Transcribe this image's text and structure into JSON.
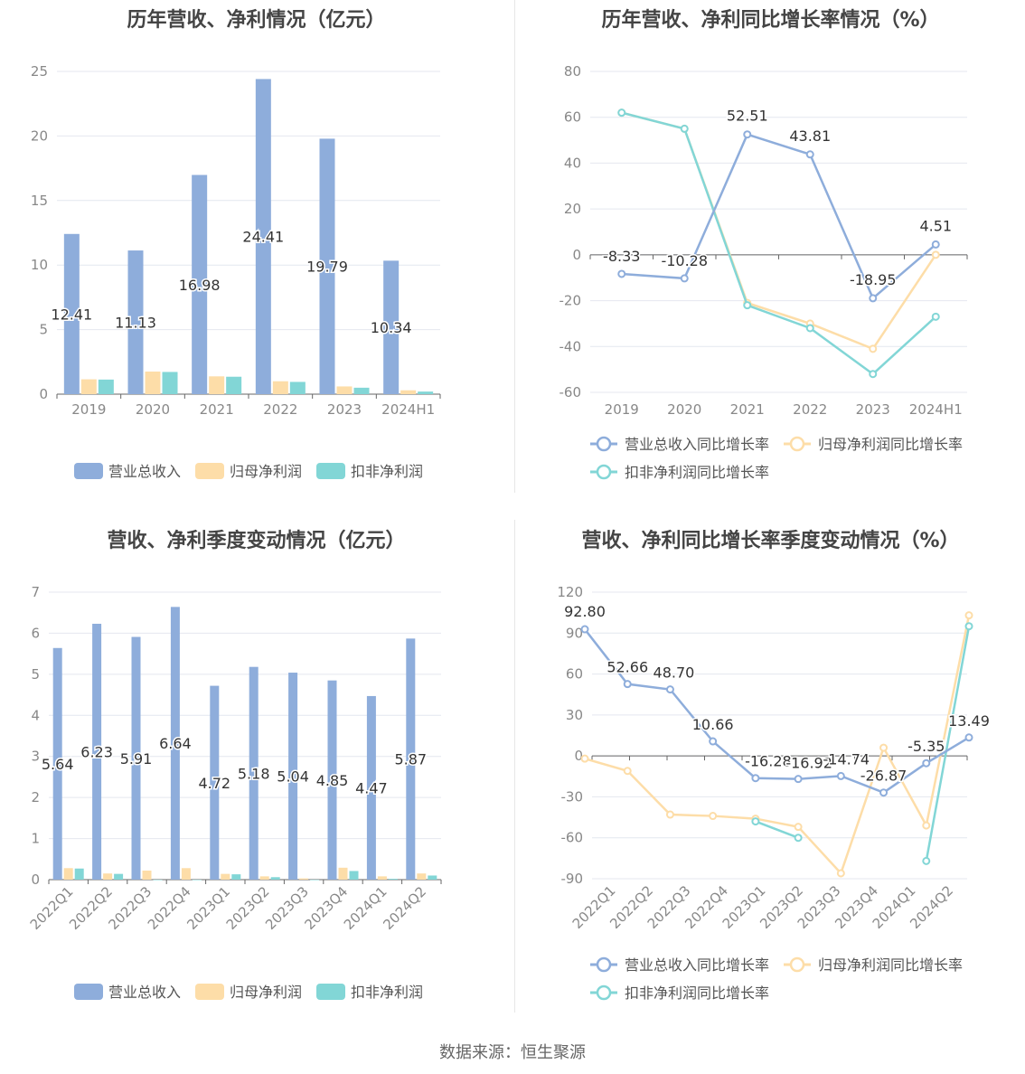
{
  "source": "数据来源：恒生聚源",
  "chart_data": [
    {
      "type": "bar",
      "title": "历年营收、净利情况（亿元）",
      "categories": [
        "2019",
        "2020",
        "2021",
        "2022",
        "2023",
        "2024H1"
      ],
      "ylim": [
        0,
        25
      ],
      "yticks": [
        0,
        5,
        10,
        15,
        20,
        25
      ],
      "series": [
        {
          "name": "营业总收入",
          "color": "#8EADDB",
          "values": [
            12.41,
            11.13,
            16.98,
            24.41,
            19.79,
            10.34
          ],
          "labels": [
            "12.41",
            "11.13",
            "16.98",
            "24.41",
            "19.79",
            "10.34"
          ]
        },
        {
          "name": "归母净利润",
          "color": "#FDDDA8",
          "values": [
            1.15,
            1.75,
            1.38,
            1.0,
            0.6,
            0.3
          ]
        },
        {
          "name": "扣非净利润",
          "color": "#82D6D6",
          "values": [
            1.13,
            1.72,
            1.35,
            0.95,
            0.5,
            0.2
          ]
        }
      ]
    },
    {
      "type": "line",
      "title": "历年营收、净利同比增长率情况（%）",
      "categories": [
        "2019",
        "2020",
        "2021",
        "2022",
        "2023",
        "2024H1"
      ],
      "ylim": [
        -60,
        80
      ],
      "yticks": [
        -60,
        -40,
        -20,
        0,
        20,
        40,
        60,
        80
      ],
      "series": [
        {
          "name": "营业总收入同比增长率",
          "color": "#8EADDB",
          "values": [
            -8.33,
            -10.28,
            52.51,
            43.81,
            -18.95,
            4.51
          ],
          "labels": [
            "-8.33",
            "-10.28",
            "52.51",
            "43.81",
            "-18.95",
            "4.51"
          ]
        },
        {
          "name": "归母净利润同比增长率",
          "color": "#FDDDA8",
          "values": [
            62,
            55,
            -21,
            -30,
            -41,
            0
          ]
        },
        {
          "name": "扣非净利润同比增长率",
          "color": "#82D6D6",
          "values": [
            62,
            55,
            -22,
            -32,
            -52,
            -27
          ]
        }
      ]
    },
    {
      "type": "bar",
      "title": "营收、净利季度变动情况（亿元）",
      "categories": [
        "2022Q1",
        "2022Q2",
        "2022Q3",
        "2022Q4",
        "2023Q1",
        "2023Q2",
        "2023Q3",
        "2023Q4",
        "2024Q1",
        "2024Q2"
      ],
      "ylim": [
        0,
        7
      ],
      "yticks": [
        0,
        1,
        2,
        3,
        4,
        5,
        6,
        7
      ],
      "series": [
        {
          "name": "营业总收入",
          "color": "#8EADDB",
          "values": [
            5.64,
            6.23,
            5.91,
            6.64,
            4.72,
            5.18,
            5.04,
            4.85,
            4.47,
            5.87
          ],
          "labels": [
            "5.64",
            "6.23",
            "5.91",
            "6.64",
            "4.72",
            "5.18",
            "5.04",
            "4.85",
            "4.47",
            "5.87"
          ]
        },
        {
          "name": "归母净利润",
          "color": "#FDDDA8",
          "values": [
            0.28,
            0.15,
            0.22,
            0.28,
            0.14,
            0.08,
            0.03,
            0.29,
            0.08,
            0.15
          ]
        },
        {
          "name": "扣非净利润",
          "color": "#82D6D6",
          "values": [
            0.27,
            0.14,
            0.0,
            0.0,
            0.13,
            0.06,
            0.0,
            0.21,
            0.02,
            0.1
          ]
        }
      ]
    },
    {
      "type": "line",
      "title": "营收、净利同比增长率季度变动情况（%）",
      "categories": [
        "2022Q1",
        "2022Q2",
        "2022Q3",
        "2022Q4",
        "2023Q1",
        "2023Q2",
        "2023Q3",
        "2023Q4",
        "2024Q1",
        "2024Q2"
      ],
      "ylim": [
        -90,
        120
      ],
      "yticks": [
        -90,
        -60,
        -30,
        0,
        30,
        60,
        90,
        120
      ],
      "series": [
        {
          "name": "营业总收入同比增长率",
          "color": "#8EADDB",
          "values": [
            92.8,
            52.66,
            48.7,
            10.66,
            -16.28,
            -16.92,
            -14.74,
            -26.87,
            -5.35,
            13.49
          ],
          "labels": [
            "92.80",
            "52.66",
            "48.70",
            "10.66",
            "-16.28",
            "-16.92",
            "-14.74",
            "-26.87",
            "-5.35",
            "13.49"
          ]
        },
        {
          "name": "归母净利润同比增长率",
          "color": "#FDDDA8",
          "values": [
            -2,
            -11,
            -43,
            -44,
            -46,
            -52,
            -86,
            6,
            -51,
            103
          ]
        },
        {
          "name": "扣非净利润同比增长率",
          "color": "#82D6D6",
          "values": [
            null,
            null,
            null,
            null,
            -48,
            -60,
            null,
            null,
            -77,
            95
          ]
        }
      ]
    }
  ]
}
